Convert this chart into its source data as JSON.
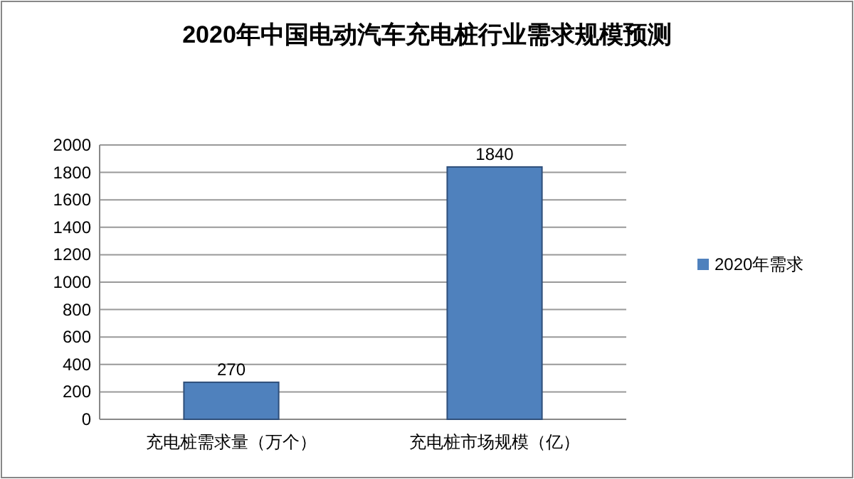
{
  "chart_data": {
    "type": "bar",
    "title": "2020年中国电动汽车充电桩行业需求规模预测",
    "categories": [
      "充电桩需求量（万个）",
      "充电桩市场规模（亿）"
    ],
    "series": [
      {
        "name": "2020年需求",
        "color": "#4f81bd",
        "values": [
          270,
          1840
        ]
      }
    ],
    "ylim": [
      0,
      2000
    ],
    "yticks": [
      0,
      200,
      400,
      600,
      800,
      1000,
      1200,
      1400,
      1600,
      1800,
      2000
    ],
    "grid": "y",
    "legend": "right",
    "data_labels": true
  }
}
